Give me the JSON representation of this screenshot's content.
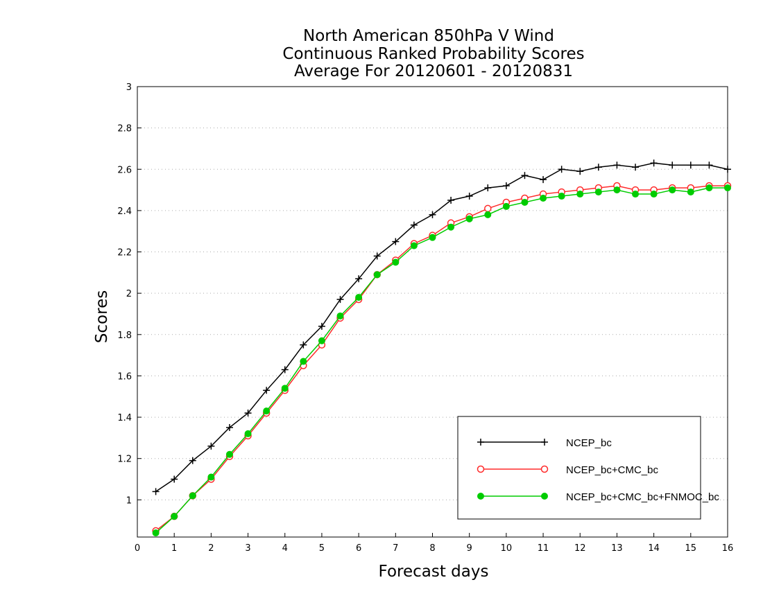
{
  "chart_data": {
    "type": "line",
    "title": [
      "North American 850hPa V Wind",
      "Continuous Ranked Probability Scores",
      "Average For 20120601 - 20120831"
    ],
    "xlabel": "Forecast days",
    "ylabel": "Scores",
    "xlim": [
      0,
      16
    ],
    "ylim": [
      0.82,
      3
    ],
    "xticks": [
      0,
      1,
      2,
      3,
      4,
      5,
      6,
      7,
      8,
      9,
      10,
      11,
      12,
      13,
      14,
      15,
      16
    ],
    "yticks": [
      1,
      1.2,
      1.4,
      1.6,
      1.8,
      2,
      2.2,
      2.4,
      2.6,
      2.8,
      3
    ],
    "ytick_labels": [
      "1",
      "1.2",
      "1.4",
      "1.6",
      "1.8",
      "2",
      "2.2",
      "2.4",
      "2.6",
      "2.8",
      "3"
    ],
    "grid": "horizontal-dotted",
    "legend_position": "bottom-right",
    "x": [
      0.5,
      1,
      1.5,
      2,
      2.5,
      3,
      3.5,
      4,
      4.5,
      5,
      5.5,
      6,
      6.5,
      7,
      7.5,
      8,
      8.5,
      9,
      9.5,
      10,
      10.5,
      11,
      11.5,
      12,
      12.5,
      13,
      13.5,
      14,
      14.5,
      15,
      15.5,
      16
    ],
    "series": [
      {
        "name": "NCEP_bc",
        "color": "#000000",
        "marker": "plus",
        "values": [
          1.04,
          1.1,
          1.19,
          1.26,
          1.35,
          1.42,
          1.53,
          1.63,
          1.75,
          1.84,
          1.97,
          2.07,
          2.18,
          2.25,
          2.33,
          2.38,
          2.45,
          2.47,
          2.51,
          2.52,
          2.57,
          2.55,
          2.6,
          2.59,
          2.61,
          2.62,
          2.61,
          2.63,
          2.62,
          2.62,
          2.62,
          2.6
        ]
      },
      {
        "name": "NCEP_bc+CMC_bc",
        "color": "#ff2a2a",
        "marker": "open-circle",
        "values": [
          0.85,
          0.92,
          1.02,
          1.1,
          1.21,
          1.31,
          1.42,
          1.53,
          1.65,
          1.75,
          1.88,
          1.97,
          2.09,
          2.16,
          2.24,
          2.28,
          2.34,
          2.37,
          2.41,
          2.44,
          2.46,
          2.48,
          2.49,
          2.5,
          2.51,
          2.52,
          2.5,
          2.5,
          2.51,
          2.51,
          2.52,
          2.52
        ]
      },
      {
        "name": "NCEP_bc+CMC_bc+FNMOC_bc",
        "color": "#00cc00",
        "marker": "filled-circle",
        "values": [
          0.84,
          0.92,
          1.02,
          1.11,
          1.22,
          1.32,
          1.43,
          1.54,
          1.67,
          1.77,
          1.89,
          1.98,
          2.09,
          2.15,
          2.23,
          2.27,
          2.32,
          2.36,
          2.38,
          2.42,
          2.44,
          2.46,
          2.47,
          2.48,
          2.49,
          2.5,
          2.48,
          2.48,
          2.5,
          2.49,
          2.51,
          2.51
        ]
      }
    ]
  }
}
